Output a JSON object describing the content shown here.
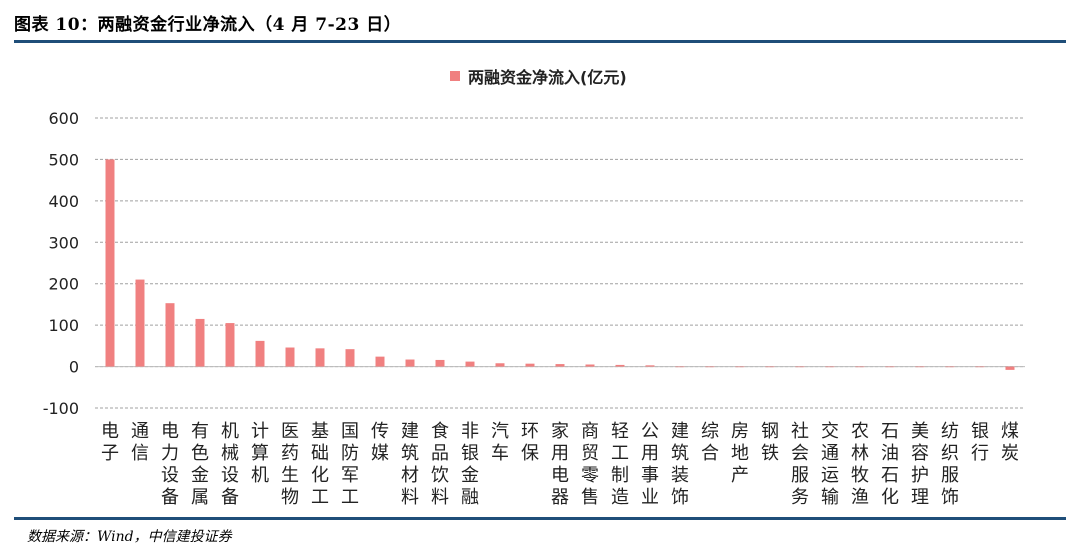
{
  "figure": {
    "title": "图表 10：两融资金行业净流入（4 月 7-23 日）",
    "source": "数据来源：Wind，中信建投证券"
  },
  "colors": {
    "bar": "#f08080",
    "rule": "#1f4e79",
    "grid": "#a0a0a0"
  },
  "chart_data": {
    "type": "bar",
    "series": [
      {
        "name": "两融资金净流入(亿元)"
      }
    ],
    "categories": [
      "电子",
      "通信",
      "电力设备",
      "有色金属",
      "机械设备",
      "计算机",
      "医药生物",
      "基础化工",
      "国防军工",
      "传媒",
      "建筑材料",
      "食品饮料",
      "非银金融",
      "汽车",
      "环保",
      "家用电器",
      "商贸零售",
      "轻工制造",
      "公用事业",
      "建筑装饰",
      "综合",
      "房地产",
      "钢铁",
      "社会服务",
      "交通运输",
      "农林牧渔",
      "石油石化",
      "美容护理",
      "纺织服饰",
      "银行",
      "煤炭"
    ],
    "values": [
      500,
      210,
      153,
      115,
      105,
      62,
      46,
      44,
      42,
      24,
      17,
      16,
      12,
      8,
      7,
      6,
      5,
      4,
      3,
      0,
      0,
      0,
      0,
      0,
      0,
      0,
      0,
      0,
      0,
      0,
      -8
    ],
    "yticks": [
      "600",
      "500",
      "400",
      "300",
      "200",
      "100",
      "0",
      "-100"
    ],
    "ylim": [
      -100,
      600
    ],
    "legend": "top-center",
    "grid": "dashed-horizontal"
  }
}
